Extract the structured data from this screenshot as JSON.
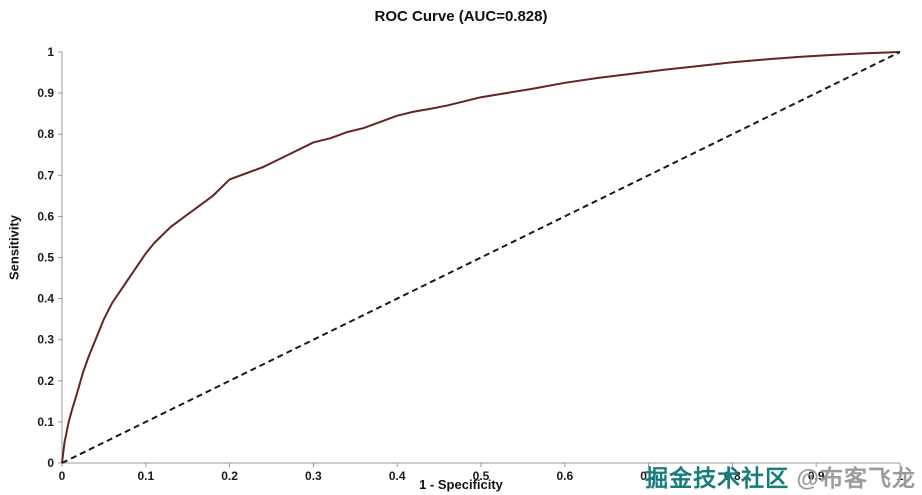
{
  "chart_data": {
    "type": "line",
    "title": "ROC Curve (AUC=0.828)",
    "xlabel": "1 - Specificity",
    "ylabel": "Sensitivity",
    "auc": 0.828,
    "xlim": [
      0,
      1
    ],
    "ylim": [
      0,
      1
    ],
    "grid": false,
    "legend": "none",
    "axis_color": "#999999",
    "tick_label_color": "#1a1a1a",
    "x_ticks": [
      0,
      0.1,
      0.2,
      0.3,
      0.4,
      0.5,
      0.6,
      0.7,
      0.8,
      0.9,
      1
    ],
    "x_tick_labels": [
      "0",
      "0.1",
      "0.2",
      "0.3",
      "0.4",
      "0.5",
      "0.6",
      "0.7",
      "0.8",
      "0.9",
      "1"
    ],
    "y_ticks": [
      0,
      0.1,
      0.2,
      0.3,
      0.4,
      0.5,
      0.6,
      0.7,
      0.8,
      0.9,
      1
    ],
    "y_tick_labels": [
      "0",
      "0.1",
      "0.2",
      "0.3",
      "0.4",
      "0.5",
      "0.6",
      "0.7",
      "0.8",
      "0.9",
      "1"
    ],
    "series": [
      {
        "name": "ROC curve",
        "style": "solid",
        "color": "#632423",
        "width": 2,
        "points": [
          [
            0,
            0
          ],
          [
            0.003,
            0.05
          ],
          [
            0.008,
            0.1
          ],
          [
            0.012,
            0.13
          ],
          [
            0.018,
            0.17
          ],
          [
            0.025,
            0.22
          ],
          [
            0.032,
            0.26
          ],
          [
            0.04,
            0.3
          ],
          [
            0.05,
            0.35
          ],
          [
            0.06,
            0.39
          ],
          [
            0.07,
            0.42
          ],
          [
            0.08,
            0.45
          ],
          [
            0.09,
            0.48
          ],
          [
            0.1,
            0.51
          ],
          [
            0.11,
            0.535
          ],
          [
            0.12,
            0.555
          ],
          [
            0.13,
            0.575
          ],
          [
            0.14,
            0.59
          ],
          [
            0.15,
            0.605
          ],
          [
            0.16,
            0.62
          ],
          [
            0.17,
            0.635
          ],
          [
            0.18,
            0.65
          ],
          [
            0.19,
            0.67
          ],
          [
            0.2,
            0.69
          ],
          [
            0.22,
            0.705
          ],
          [
            0.24,
            0.72
          ],
          [
            0.26,
            0.74
          ],
          [
            0.28,
            0.76
          ],
          [
            0.3,
            0.78
          ],
          [
            0.32,
            0.79
          ],
          [
            0.34,
            0.805
          ],
          [
            0.36,
            0.815
          ],
          [
            0.38,
            0.83
          ],
          [
            0.4,
            0.845
          ],
          [
            0.42,
            0.855
          ],
          [
            0.44,
            0.862
          ],
          [
            0.46,
            0.87
          ],
          [
            0.48,
            0.88
          ],
          [
            0.5,
            0.89
          ],
          [
            0.53,
            0.9
          ],
          [
            0.56,
            0.91
          ],
          [
            0.6,
            0.925
          ],
          [
            0.64,
            0.937
          ],
          [
            0.68,
            0.947
          ],
          [
            0.72,
            0.957
          ],
          [
            0.76,
            0.966
          ],
          [
            0.8,
            0.975
          ],
          [
            0.84,
            0.982
          ],
          [
            0.88,
            0.988
          ],
          [
            0.92,
            0.993
          ],
          [
            0.96,
            0.997
          ],
          [
            1,
            1
          ]
        ]
      },
      {
        "name": "Reference (chance) line",
        "style": "dashed",
        "color": "#1a1a1a",
        "width": 2,
        "points": [
          [
            0,
            0
          ],
          [
            1,
            1
          ]
        ]
      }
    ]
  },
  "watermark": {
    "part1": "掘金技术社区",
    "part2": " @布客飞龙"
  }
}
